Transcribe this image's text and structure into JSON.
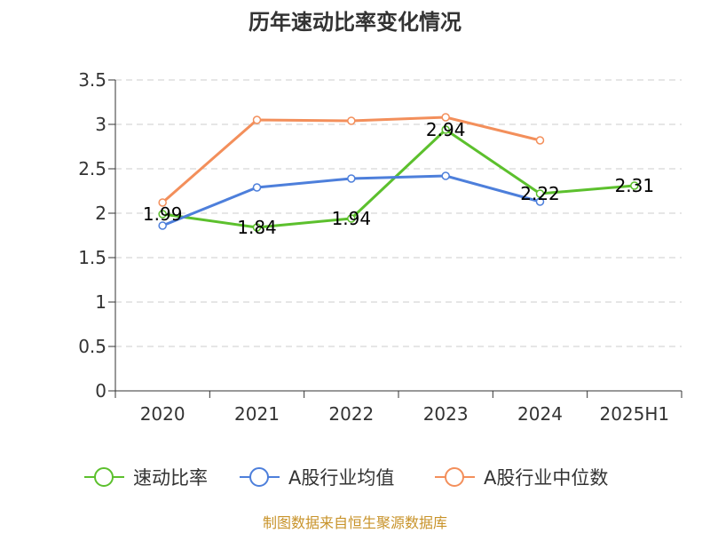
{
  "chart_data": {
    "type": "line",
    "title": "历年速动比率变化情况",
    "categories": [
      "2020",
      "2021",
      "2022",
      "2023",
      "2024",
      "2025H1"
    ],
    "ylim": [
      0,
      3.5
    ],
    "yticks": [
      "0",
      "0.5",
      "1",
      "1.5",
      "2",
      "2.5",
      "3",
      "3.5"
    ],
    "grid": true,
    "legend_position": "bottom",
    "series": [
      {
        "name": "速动比率",
        "color": "#5cc02d",
        "values": [
          1.99,
          1.84,
          1.94,
          2.94,
          2.22,
          2.31
        ],
        "labels": [
          "1.99",
          "1.84",
          "1.94",
          "2.94",
          "2.22",
          "2.31"
        ],
        "show_labels": true
      },
      {
        "name": "A股行业均值",
        "color": "#4d7fdb",
        "values": [
          1.86,
          2.29,
          2.39,
          2.42,
          2.13,
          null
        ],
        "show_labels": false
      },
      {
        "name": "A股行业中位数",
        "color": "#f38f5b",
        "values": [
          2.12,
          3.05,
          3.04,
          3.08,
          2.82,
          null
        ],
        "show_labels": false
      }
    ]
  },
  "footer": {
    "source": "制图数据来自恒生聚源数据库"
  }
}
